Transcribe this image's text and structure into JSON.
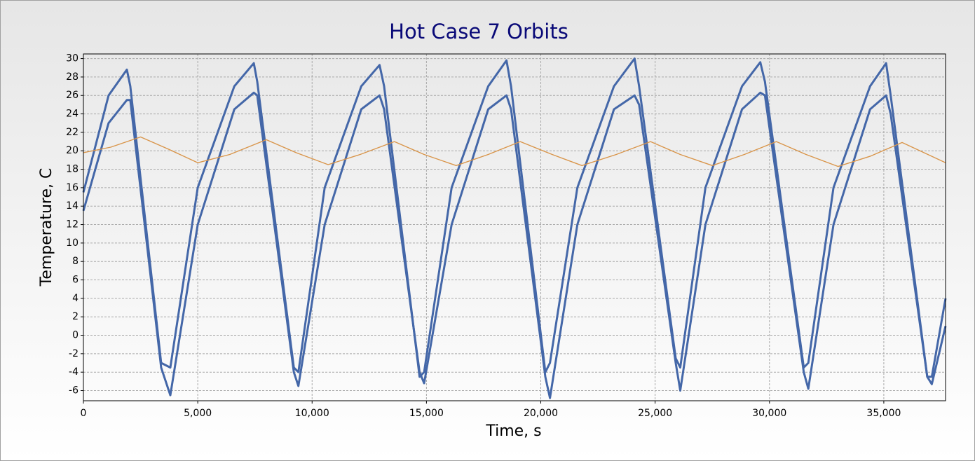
{
  "chart_data": {
    "type": "line",
    "title": "Hot Case 7 Orbits",
    "x_label": "Time, s",
    "y_label": "Temperature, C",
    "xlim": [
      0,
      37700
    ],
    "ylim": [
      -7.1,
      30.5
    ],
    "xticks": [
      0,
      {
        "value": 5000,
        "label": "5,000"
      },
      {
        "value": 10000,
        "label": "10,000"
      },
      {
        "value": 15000,
        "label": "15,000"
      },
      {
        "value": 20000,
        "label": "20,000"
      },
      {
        "value": 25000,
        "label": "25,000"
      },
      {
        "value": 30000,
        "label": "30,000"
      },
      {
        "value": 35000,
        "label": "35,000"
      }
    ],
    "yticks": [
      -6,
      -4,
      -2,
      0,
      2,
      4,
      6,
      8,
      10,
      12,
      14,
      16,
      18,
      20,
      22,
      24,
      26,
      28,
      30
    ],
    "grid": true,
    "series": [
      {
        "color": "#4467a8",
        "x": [
          0,
          1100,
          1900,
          2050,
          3400,
          3800,
          5000,
          6600,
          7450,
          7600,
          9200,
          9400,
          10550,
          12150,
          12950,
          13150,
          14700,
          14900,
          16100,
          17700,
          18500,
          18700,
          20200,
          20400,
          21600,
          23200,
          24100,
          24300,
          25900,
          26100,
          27200,
          28800,
          29600,
          29800,
          31500,
          31700,
          32800,
          34400,
          35100,
          35300,
          36900,
          37100,
          37700
        ],
        "values": [
          15.5,
          26,
          28.8,
          27,
          -3,
          -3.5,
          16,
          27,
          29.5,
          27.5,
          -3.5,
          -4,
          16,
          27,
          29.3,
          27,
          -4.5,
          -4,
          16,
          27,
          29.8,
          27,
          -4,
          -3,
          16,
          27,
          30,
          27,
          -2.5,
          -3.5,
          16,
          27,
          29.6,
          27.5,
          -3.5,
          -3,
          16,
          27,
          29.5,
          26,
          -4.5,
          -4.5,
          4
        ]
      },
      {
        "color": "#4467a8",
        "x": [
          0,
          1100,
          1900,
          2050,
          3400,
          3800,
          5000,
          6600,
          7450,
          7600,
          9200,
          9400,
          10550,
          12150,
          12950,
          13150,
          14700,
          14900,
          16100,
          17700,
          18500,
          18700,
          20200,
          20400,
          21600,
          23200,
          24100,
          24300,
          25900,
          26100,
          27200,
          28800,
          29600,
          29800,
          31500,
          31700,
          32800,
          34400,
          35100,
          35300,
          36900,
          37100,
          37700
        ],
        "values": [
          13.5,
          23,
          25.5,
          25.5,
          -3.5,
          -6.5,
          12,
          24.5,
          26.3,
          26,
          -4,
          -5.5,
          12,
          24.5,
          26,
          24.5,
          -4,
          -5.2,
          12,
          24.5,
          26,
          24.5,
          -4.5,
          -6.8,
          12,
          24.5,
          26,
          25,
          -3,
          -6,
          12,
          24.5,
          26.3,
          26,
          -4,
          -5.8,
          12,
          24.5,
          26,
          24,
          -4.5,
          -5.3,
          1
        ]
      },
      {
        "color": "#d9954a",
        "x": [
          0,
          1200,
          2500,
          3700,
          5000,
          6400,
          8000,
          9300,
          10700,
          12100,
          13600,
          14900,
          16300,
          17700,
          19100,
          20500,
          21800,
          23300,
          24800,
          26100,
          27500,
          28900,
          30300,
          31600,
          33000,
          34400,
          35800,
          37700
        ],
        "values": [
          19.8,
          20.4,
          21.5,
          20.2,
          18.7,
          19.6,
          21.2,
          19.8,
          18.5,
          19.6,
          21.0,
          19.6,
          18.4,
          19.6,
          21.0,
          19.6,
          18.4,
          19.6,
          21.0,
          19.6,
          18.4,
          19.6,
          21.0,
          19.6,
          18.3,
          19.4,
          20.9,
          18.7
        ]
      }
    ]
  }
}
